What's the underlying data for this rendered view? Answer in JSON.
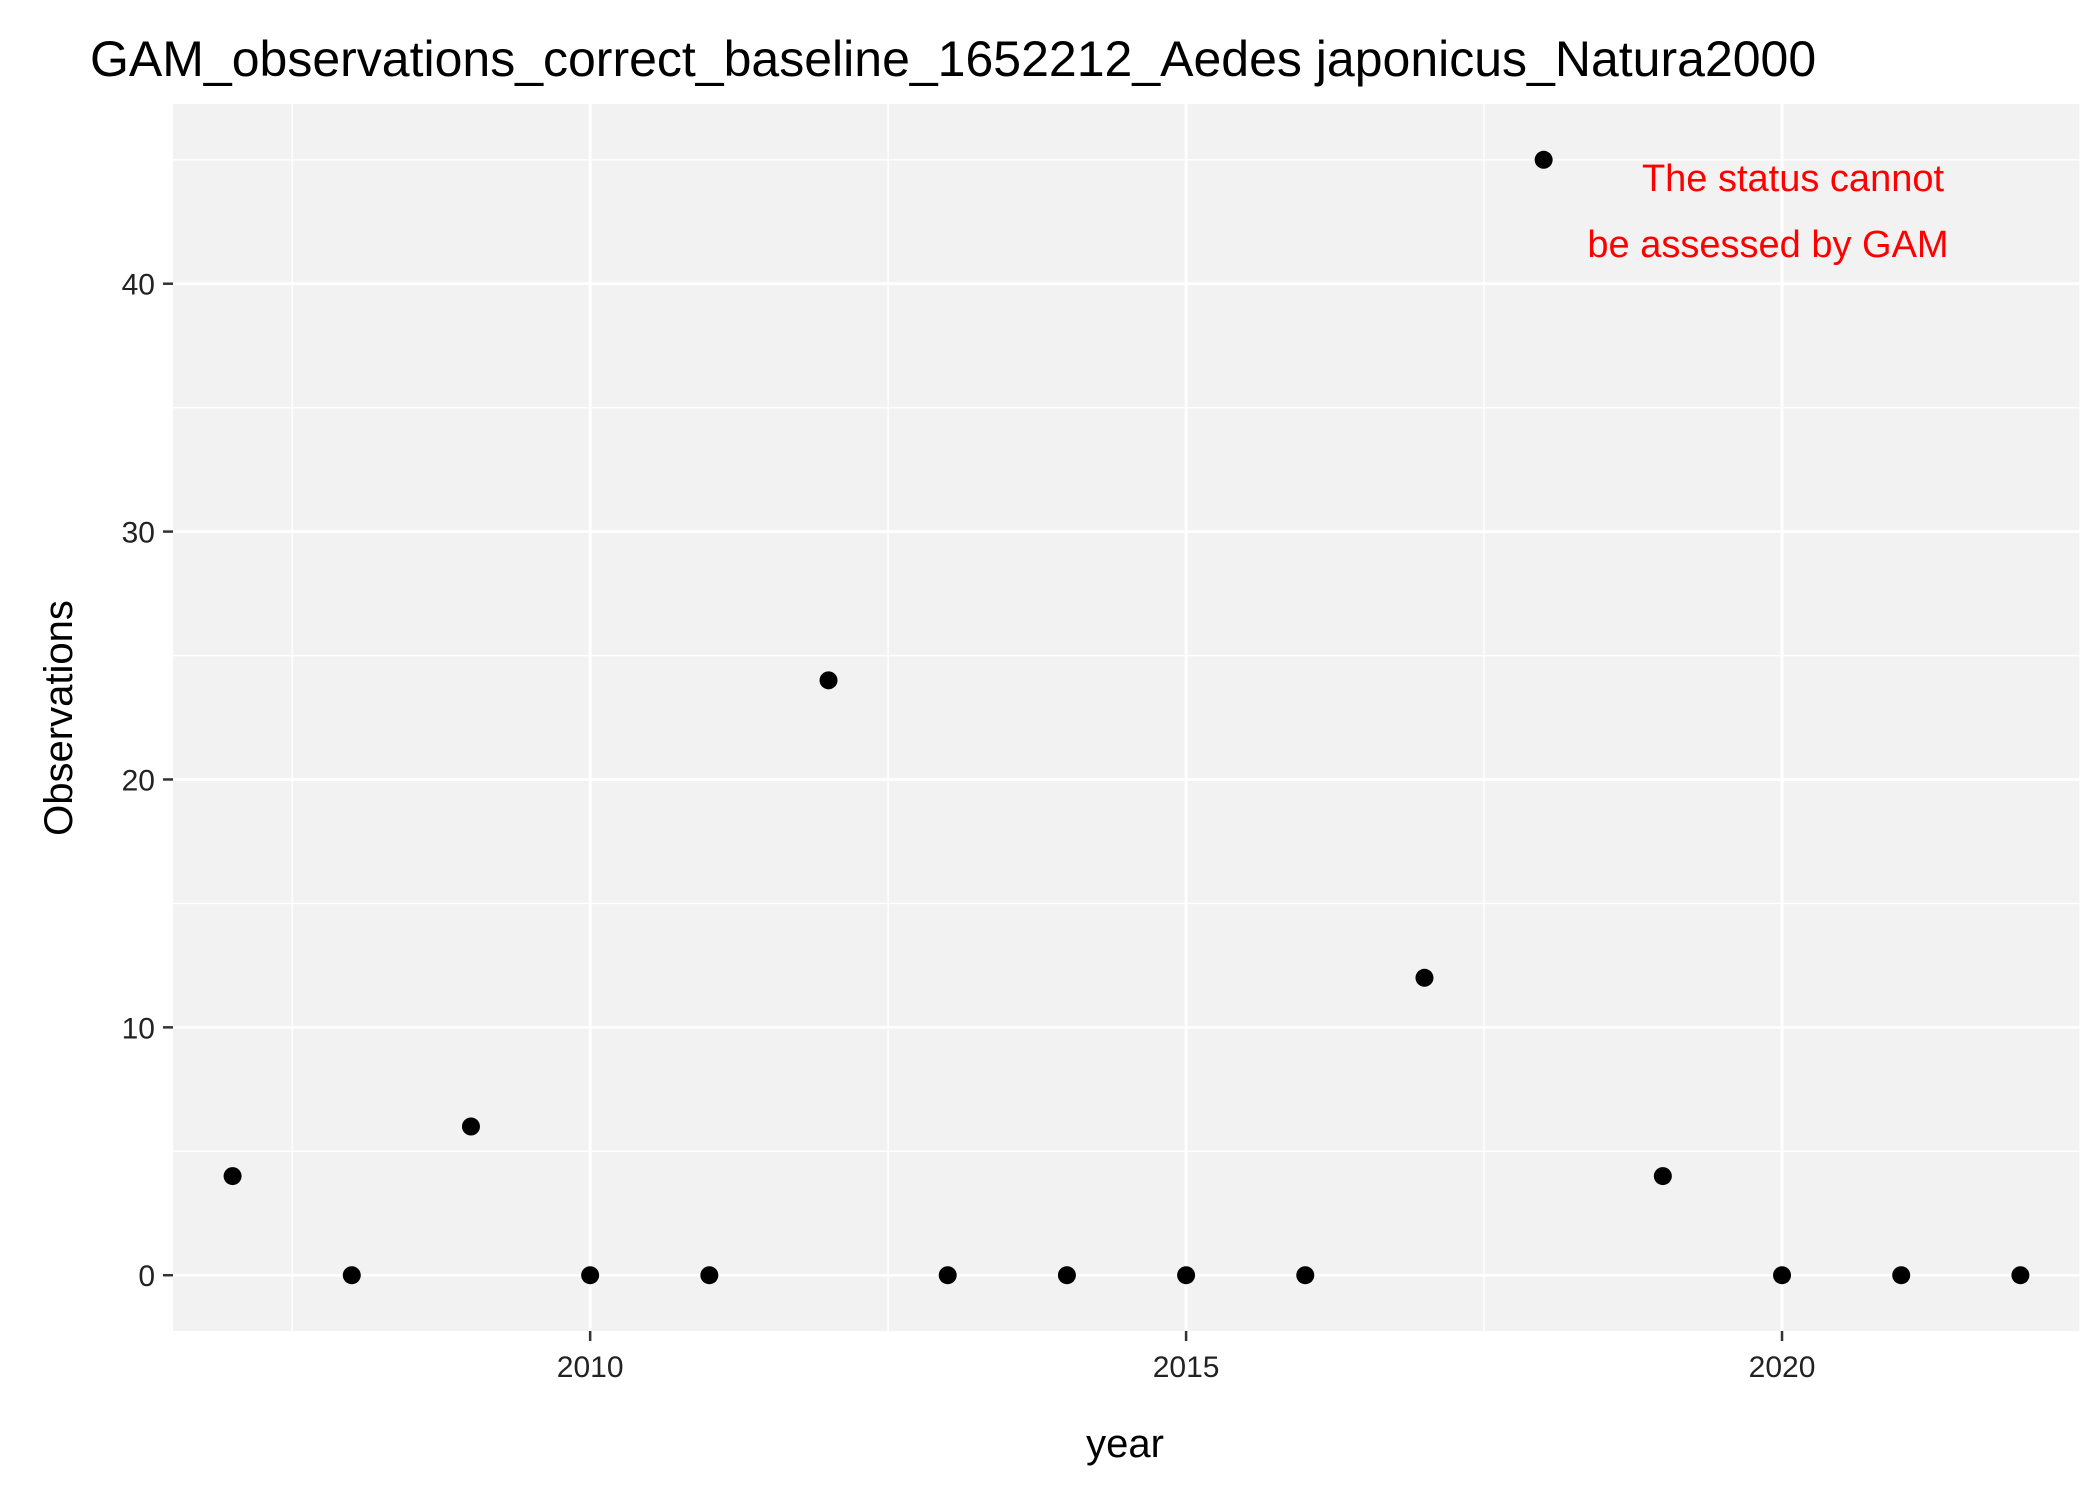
{
  "chart_data": {
    "type": "scatter",
    "title": "GAM_observations_correct_baseline_1652212_Aedes japonicus_Natura2000",
    "xlabel": "year",
    "ylabel": "Observations",
    "xlim": [
      2006.5,
      2022.5
    ],
    "ylim": [
      -2.25,
      47.25
    ],
    "x_ticks": [
      2010,
      2015,
      2020
    ],
    "y_ticks": [
      0,
      10,
      20,
      30,
      40
    ],
    "grid": true,
    "background": "#f2f2f2",
    "grid_color": "#ffffff",
    "point_color": "#000000",
    "points": [
      {
        "x": 2007,
        "y": 4
      },
      {
        "x": 2008,
        "y": 0
      },
      {
        "x": 2009,
        "y": 6
      },
      {
        "x": 2010,
        "y": 0
      },
      {
        "x": 2011,
        "y": 0
      },
      {
        "x": 2012,
        "y": 24
      },
      {
        "x": 2013,
        "y": 0
      },
      {
        "x": 2014,
        "y": 0
      },
      {
        "x": 2015,
        "y": 0
      },
      {
        "x": 2016,
        "y": 0
      },
      {
        "x": 2017,
        "y": 12
      },
      {
        "x": 2018,
        "y": 45
      },
      {
        "x": 2019,
        "y": 4
      },
      {
        "x": 2020,
        "y": 0
      },
      {
        "x": 2021,
        "y": 0
      },
      {
        "x": 2022,
        "y": 0
      }
    ],
    "annotation": {
      "lines": [
        "The status cannot",
        "be assessed by GAM"
      ],
      "color": "#ff0000"
    }
  }
}
